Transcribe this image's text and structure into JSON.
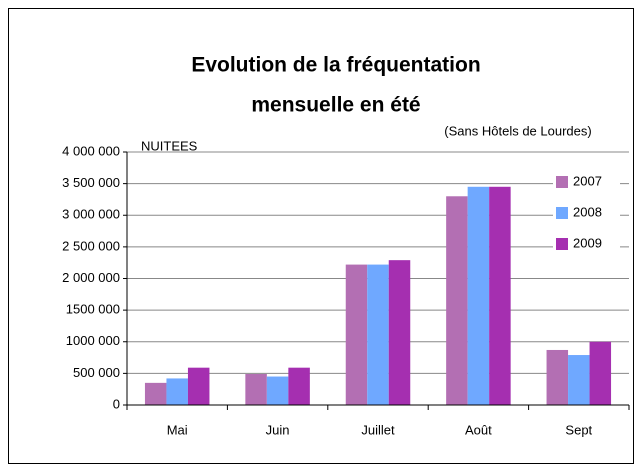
{
  "chart_data": {
    "type": "bar",
    "title": [
      "Evolution de la fréquentation",
      "mensuelle en été"
    ],
    "annotation": "(Sans Hôtels de Lourdes)",
    "y_label": "NUITEES",
    "categories": [
      "Mai",
      "Juin",
      "Juillet",
      "Août",
      "Sept"
    ],
    "series": [
      {
        "name": "2007",
        "color": "#b36fb3",
        "values": [
          350000,
          490000,
          2220000,
          3300000,
          870000
        ]
      },
      {
        "name": "2008",
        "color": "#6fa8ff",
        "values": [
          420000,
          450000,
          2220000,
          3450000,
          790000
        ]
      },
      {
        "name": "2009",
        "color": "#a52fb0",
        "values": [
          590000,
          590000,
          2290000,
          3450000,
          1000000
        ]
      }
    ],
    "ylim": [
      0,
      4000000
    ],
    "yticks": [
      0,
      {
        "value": 500000,
        "label": "500 000"
      },
      {
        "value": 1000000,
        "label": "1000 000"
      },
      {
        "value": 1500000,
        "label": "1500 000"
      },
      {
        "value": 2000000,
        "label": "2 000 000"
      },
      {
        "value": 2500000,
        "label": "2 500 000"
      },
      {
        "value": 3000000,
        "label": "3 000 000"
      },
      {
        "value": 3500000,
        "label": "3 500 000"
      },
      {
        "value": 4000000,
        "label": "4 000 000"
      }
    ],
    "grid": true,
    "legend": "right"
  }
}
